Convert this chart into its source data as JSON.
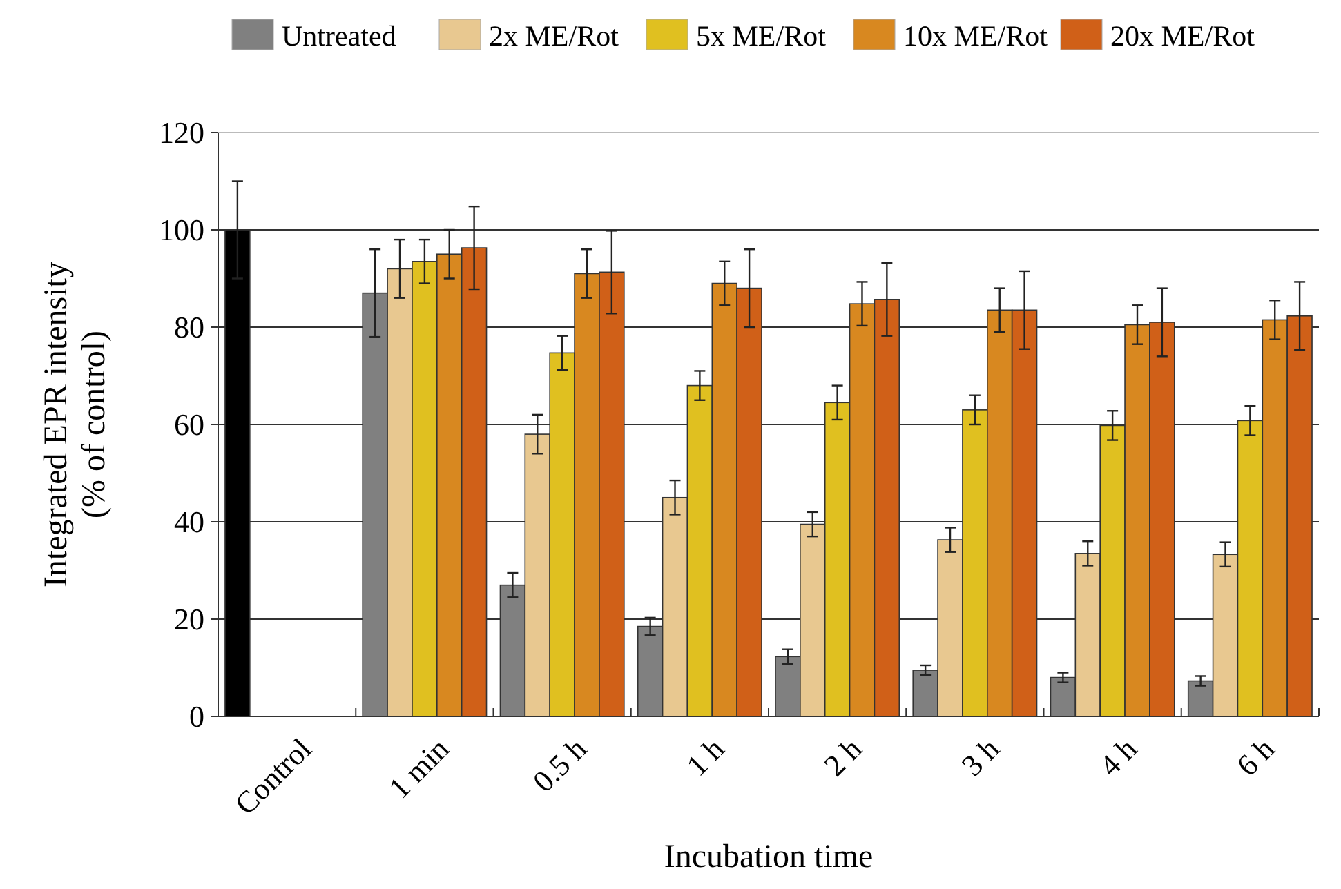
{
  "chart_data": {
    "type": "bar",
    "xlabel": "Incubation time",
    "ylabel": "Integrated EPR intensity\n(% of control)",
    "categories": [
      "Control",
      "1 min",
      "0.5 h",
      "1 h",
      "2 h",
      "3 h",
      "4 h",
      "6 h"
    ],
    "ylim": [
      0,
      120
    ],
    "yticks": [
      0,
      20,
      40,
      60,
      80,
      100,
      120
    ],
    "grid": "y",
    "legend": "top",
    "series": [
      {
        "name": "Untreated",
        "color": "#808080",
        "colors": [
          "#000000",
          "#808080",
          "#808080",
          "#808080",
          "#808080",
          "#808080",
          "#808080",
          "#808080"
        ],
        "values": [
          100,
          87,
          27,
          18.5,
          12.3,
          9.5,
          8,
          7.3
        ],
        "errors": [
          10,
          9,
          2.5,
          1.8,
          1.5,
          1,
          1,
          1
        ]
      },
      {
        "name": "2x ME/Rot",
        "color": "#e8c890",
        "values": [
          null,
          92,
          58,
          45,
          39.5,
          36.3,
          33.5,
          33.3
        ],
        "errors": [
          null,
          6,
          4,
          3.5,
          2.5,
          2.5,
          2.5,
          2.5
        ]
      },
      {
        "name": "5x ME/Rot",
        "color": "#e0c020",
        "values": [
          null,
          93.5,
          74.7,
          68,
          64.5,
          63,
          59.8,
          60.8
        ],
        "errors": [
          null,
          4.5,
          3.5,
          3,
          3.5,
          3,
          3,
          3
        ]
      },
      {
        "name": "10x ME/Rot",
        "color": "#d88820",
        "values": [
          null,
          95,
          91,
          89,
          84.8,
          83.5,
          80.5,
          81.5
        ],
        "errors": [
          null,
          5,
          5,
          4.5,
          4.5,
          4.5,
          4,
          4
        ]
      },
      {
        "name": "20x ME/Rot",
        "color": "#d06018",
        "values": [
          null,
          96.3,
          91.3,
          88,
          85.7,
          83.5,
          81,
          82.3
        ],
        "errors": [
          null,
          8.5,
          8.5,
          8,
          7.5,
          8,
          7,
          7
        ]
      }
    ]
  }
}
